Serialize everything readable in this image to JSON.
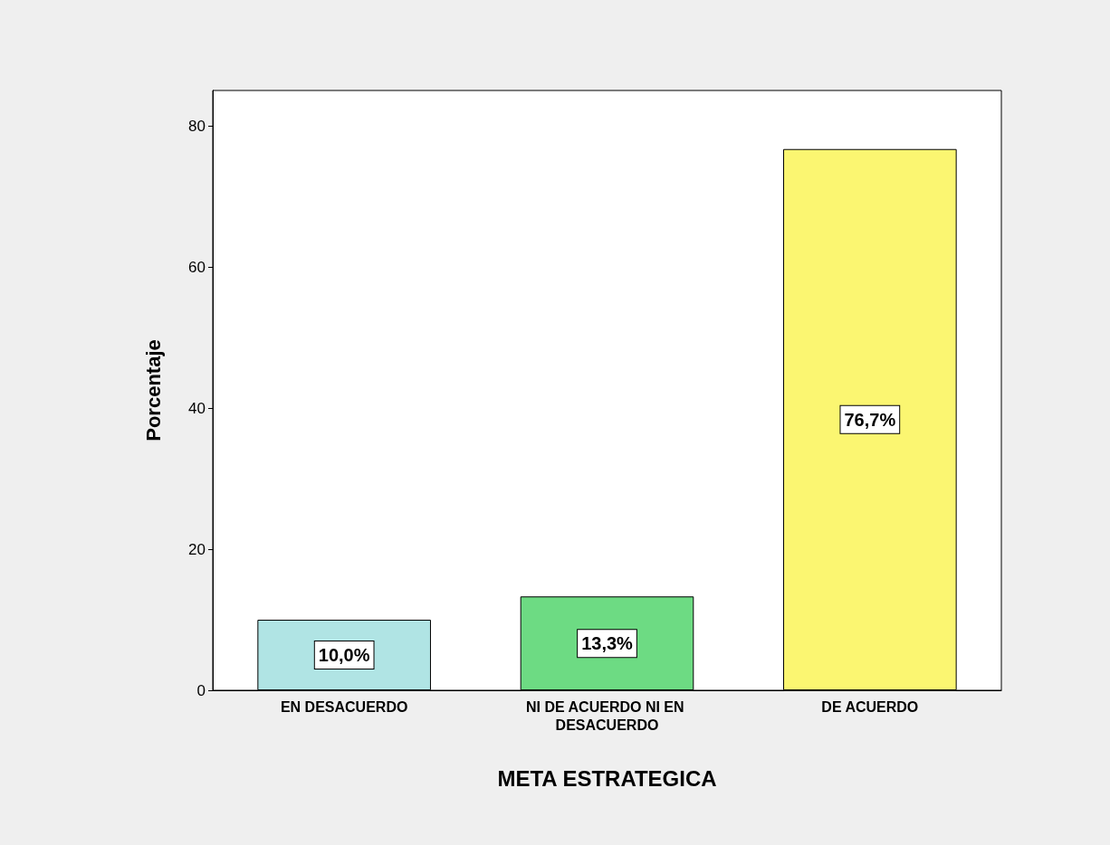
{
  "chart_data": {
    "type": "bar",
    "categories": [
      "EN DESACUERDO",
      "NI DE ACUERDO NI EN DESACUERDO",
      "DE ACUERDO"
    ],
    "values": [
      10.0,
      13.3,
      76.7
    ],
    "value_labels": [
      "10,0%",
      "13,3%",
      "76,7%"
    ],
    "colors": [
      "#b0e4e4",
      "#6ddb83",
      "#fbf671"
    ],
    "xlabel": "META ESTRATEGICA",
    "ylabel": "Porcentaje",
    "ylim": [
      0,
      85
    ],
    "yticks": [
      0,
      20,
      40,
      60,
      80
    ],
    "grid": false
  }
}
